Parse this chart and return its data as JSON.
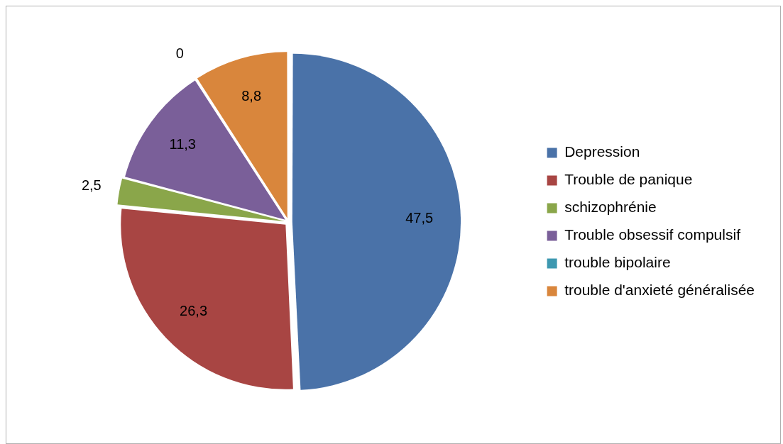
{
  "chart_data": {
    "type": "pie",
    "categories": [
      "Depression",
      "Trouble de panique",
      "schizophrénie",
      "Trouble obsessif compulsif",
      "trouble bipolaire",
      "trouble d'anxieté généralisée"
    ],
    "values": [
      47.5,
      26.3,
      2.5,
      11.3,
      0,
      8.8
    ],
    "value_labels": [
      "47,5",
      "26,3",
      "2,5",
      "11,3",
      "0",
      "8,8"
    ],
    "colors": [
      "#4a72a8",
      "#a84543",
      "#8aa64a",
      "#7a5f99",
      "#3d98b0",
      "#d9863c"
    ],
    "legend": "right"
  }
}
